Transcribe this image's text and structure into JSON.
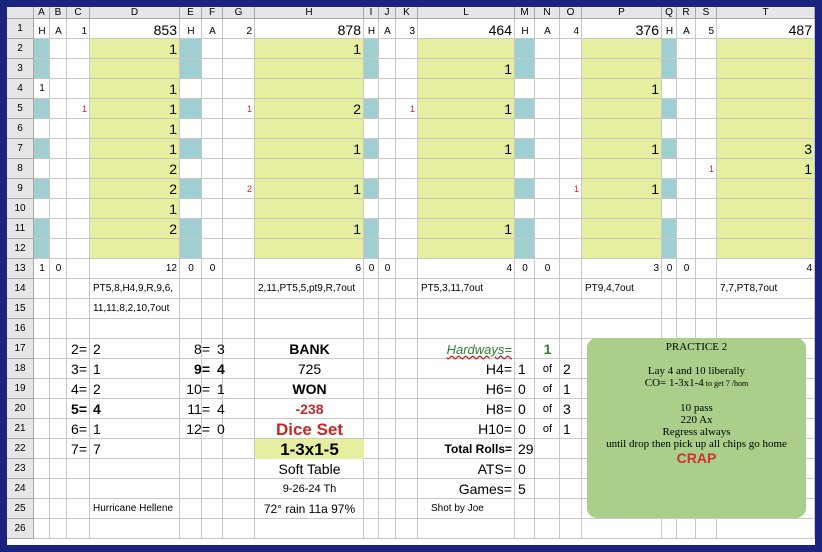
{
  "columns": [
    "",
    "A",
    "B",
    "C",
    "D",
    "E",
    "F",
    "G",
    "H",
    "I",
    "J",
    "K",
    "L",
    "M",
    "N",
    "O",
    "P",
    "Q",
    "R",
    "S",
    "T"
  ],
  "rows": [
    "1",
    "2",
    "3",
    "4",
    "5",
    "6",
    "7",
    "8",
    "9",
    "10",
    "11",
    "12",
    "13",
    "14",
    "15",
    "16",
    "17",
    "18",
    "19",
    "20",
    "21",
    "22",
    "23",
    "24",
    "25",
    "26"
  ],
  "colors": {
    "yellow": "#e6ef9f",
    "teal": "#9fcfd0",
    "red": "#c62828",
    "green": "#2e7d32",
    "note_bg": "#a9cf8a",
    "frame": "#1a237e"
  },
  "row1": [
    [
      "A",
      "H"
    ],
    [
      "B",
      "A"
    ],
    [
      "C",
      "1"
    ],
    [
      "D",
      "853"
    ],
    [
      "E",
      "H"
    ],
    [
      "F",
      "A"
    ],
    [
      "G",
      "2"
    ],
    [
      "H",
      "878"
    ],
    [
      "I",
      "H"
    ],
    [
      "J",
      "A"
    ],
    [
      "K",
      "3"
    ],
    [
      "L",
      "464"
    ],
    [
      "M",
      "H"
    ],
    [
      "N",
      "A"
    ],
    [
      "O",
      "4"
    ],
    [
      "P",
      "376"
    ],
    [
      "Q",
      "H"
    ],
    [
      "R",
      "A"
    ],
    [
      "S",
      "5"
    ],
    [
      "T",
      "487"
    ]
  ],
  "blocks": [
    {
      "main": "D",
      "marker": "C",
      "count_row": "12",
      "hard_count": "0",
      "easy_count": "0",
      "values": [
        [
          "2",
          "1"
        ],
        [
          "4",
          "1"
        ],
        [
          "5",
          "1"
        ],
        [
          "6",
          "1"
        ],
        [
          "7",
          "1"
        ],
        [
          "8",
          "2"
        ],
        [
          "9",
          "2"
        ],
        [
          "10",
          "1"
        ],
        [
          "11",
          "2"
        ]
      ],
      "markers": [
        [
          "5",
          "1"
        ]
      ]
    },
    {
      "main": "H",
      "marker": "G",
      "count_row": "6",
      "hard_count": "0",
      "easy_count": "0",
      "values": [
        [
          "2",
          "1"
        ],
        [
          "5",
          "2"
        ],
        [
          "7",
          "1"
        ],
        [
          "9",
          "1"
        ],
        [
          "11",
          "1"
        ]
      ],
      "markers": [
        [
          "5",
          "1"
        ],
        [
          "9",
          "2"
        ]
      ]
    },
    {
      "main": "L",
      "marker": "K",
      "count_row": "4",
      "hard_count": "0",
      "easy_count": "0",
      "values": [
        [
          "3",
          "1"
        ],
        [
          "5",
          "1"
        ],
        [
          "7",
          "1"
        ],
        [
          "11",
          "1"
        ]
      ],
      "markers": [
        [
          "5",
          "1"
        ]
      ]
    },
    {
      "main": "P",
      "marker": "O",
      "count_row": "3",
      "hard_count": "0",
      "easy_count": "0",
      "values": [
        [
          "4",
          "1"
        ],
        [
          "7",
          "1"
        ],
        [
          "9",
          "1"
        ]
      ],
      "markers": [
        [
          "9",
          "1"
        ]
      ]
    },
    {
      "main": "T",
      "marker": "S",
      "count_row": "4",
      "hard_count": "0",
      "easy_count": "0",
      "values": [
        [
          "7",
          "3"
        ],
        [
          "8",
          "1"
        ]
      ],
      "markers": [
        [
          "8",
          "1"
        ]
      ]
    }
  ],
  "row4_A": "1",
  "row13_A": "1",
  "sequences": {
    "d14": "PT5,8,H4,9,R,9,6,",
    "d15": "11,11,8,2,10,7out",
    "h14": "2,11,PT5,5,pt9,R,7out",
    "l14": "PT5,3,11,7out",
    "p14": "PT9,4,7out",
    "t14": "7,7,PT8,7out"
  },
  "totals_left": [
    [
      "2=",
      "2"
    ],
    [
      "3=",
      "1"
    ],
    [
      "4=",
      "2"
    ],
    [
      "5=",
      "4"
    ],
    [
      "6=",
      "1"
    ],
    [
      "7=",
      "7"
    ]
  ],
  "totals_right": [
    [
      "8=",
      "3"
    ],
    [
      "9=",
      "4"
    ],
    [
      "10=",
      "1"
    ],
    [
      "11=",
      "4"
    ],
    [
      "12=",
      "0"
    ]
  ],
  "bank_label": "BANK",
  "bank_value": "725",
  "won_label": "WON",
  "won_value": "-238",
  "dice_set_label": "Dice Set",
  "dice_set_value": "1-3x1-5",
  "table_type": "Soft Table",
  "date": "9-26-24 Th",
  "weather": "72° rain 11a 97%",
  "hurricane": "Hurricane Hellene",
  "shooter": "Shot by Joe",
  "hardways_label": "Hardways=",
  "hardways_value": "1",
  "hardways": [
    [
      "H4=",
      "1",
      "of",
      "2"
    ],
    [
      "H6=",
      "0",
      "of",
      "1"
    ],
    [
      "H8=",
      "0",
      "of",
      "3"
    ],
    [
      "H10=",
      "0",
      "of",
      "1"
    ]
  ],
  "total_rolls_label": "Total Rolls=",
  "total_rolls": "29",
  "ats_label": "ATS=",
  "ats": "0",
  "games_label": "Games=",
  "games": "5",
  "note": {
    "title": "PRACTICE 2",
    "line1": "Lay 4 and 10 liberally",
    "line2_a": "CO= 1-3x1-4",
    "line2_b": " to get 7 /hom",
    "line3": "10 pass",
    "line4": "220 Ax",
    "line5": "Regress always",
    "line6": "until drop then pick up all chips go home",
    "crap": "CRAP"
  }
}
